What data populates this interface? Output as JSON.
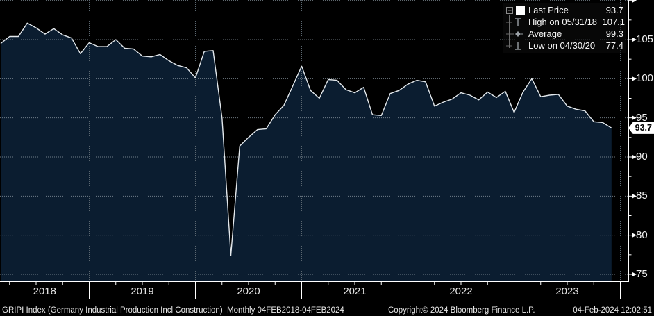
{
  "chart_data": {
    "type": "area",
    "title": "GRIPI Index (Germany Industrial Production Incl Construction)",
    "frequency": "Monthly",
    "range": "04FEB2018-04FEB2024",
    "x": [
      "2018-02",
      "2018-03",
      "2018-04",
      "2018-05",
      "2018-06",
      "2018-07",
      "2018-08",
      "2018-09",
      "2018-10",
      "2018-11",
      "2018-12",
      "2019-01",
      "2019-02",
      "2019-03",
      "2019-04",
      "2019-05",
      "2019-06",
      "2019-07",
      "2019-08",
      "2019-09",
      "2019-10",
      "2019-11",
      "2019-12",
      "2020-01",
      "2020-02",
      "2020-03",
      "2020-04",
      "2020-05",
      "2020-06",
      "2020-07",
      "2020-08",
      "2020-09",
      "2020-10",
      "2020-11",
      "2020-12",
      "2021-01",
      "2021-02",
      "2021-03",
      "2021-04",
      "2021-05",
      "2021-06",
      "2021-07",
      "2021-08",
      "2021-09",
      "2021-10",
      "2021-11",
      "2021-12",
      "2022-01",
      "2022-02",
      "2022-03",
      "2022-04",
      "2022-05",
      "2022-06",
      "2022-07",
      "2022-08",
      "2022-09",
      "2022-10",
      "2022-11",
      "2022-12",
      "2023-01",
      "2023-02",
      "2023-03",
      "2023-04",
      "2023-05",
      "2023-06",
      "2023-07",
      "2023-08",
      "2023-09",
      "2023-10",
      "2023-11"
    ],
    "values": [
      104.5,
      105.4,
      105.4,
      107.1,
      106.5,
      105.7,
      106.4,
      105.6,
      105.2,
      103.2,
      104.6,
      104.1,
      104.1,
      105.0,
      103.9,
      103.8,
      102.9,
      102.8,
      103.1,
      102.3,
      101.7,
      101.4,
      100.1,
      103.5,
      103.6,
      95.0,
      77.4,
      91.4,
      92.5,
      93.5,
      93.6,
      95.4,
      96.6,
      99.1,
      101.6,
      98.5,
      97.5,
      99.9,
      99.8,
      98.6,
      98.2,
      98.9,
      95.4,
      95.3,
      98.1,
      98.5,
      99.3,
      99.8,
      99.6,
      96.5,
      97.0,
      97.4,
      98.2,
      97.9,
      97.3,
      98.3,
      97.6,
      98.4,
      95.7,
      98.3,
      100.0,
      97.7,
      97.9,
      98.0,
      96.5,
      96.1,
      95.9,
      94.5,
      94.4,
      93.7
    ],
    "ylim": [
      74,
      110
    ],
    "y_ticks": [
      75,
      80,
      85,
      90,
      95,
      100,
      105
    ],
    "y_minor_step": 2.5,
    "x_tick_years": [
      "2018",
      "2019",
      "2020",
      "2021",
      "2022",
      "2023"
    ],
    "grid": true,
    "legend_position": "top-right",
    "last_price_label": "93.7",
    "stats": {
      "last": "93.7",
      "high": "107.1",
      "average": "99.3",
      "low": "77.4"
    },
    "colors": {
      "background": "#000000",
      "area_fill": "#0b1d30",
      "line": "#e3e8ec",
      "grid_h": "#8a97a1",
      "grid_v": "#5c6871",
      "axis": "#ffffff",
      "badge_bg": "#ffffff",
      "badge_text": "#000000"
    }
  },
  "legend": {
    "rows": [
      {
        "label": "Last Price",
        "value": "93.7"
      },
      {
        "label": "High on 05/31/18",
        "value": "107.1"
      },
      {
        "label": "Average",
        "value": "99.3"
      },
      {
        "label": "Low on 04/30/20",
        "value": "77.4"
      }
    ]
  },
  "footer": {
    "left": "GRIPI Index (Germany Industrial Production Incl Construction)  Monthly 04FEB2018-04FEB2024",
    "center": "Copyright© 2024 Bloomberg Finance L.P.",
    "right": "04-Feb-2024 12:02:51"
  }
}
